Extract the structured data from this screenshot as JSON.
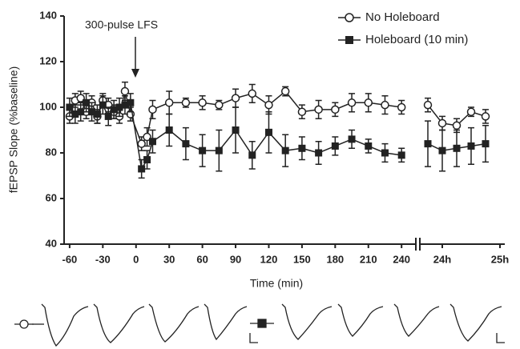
{
  "chart_data": {
    "type": "line",
    "annotation": "300-pulse LFS",
    "xlabel": "Time (min)",
    "ylabel": "fEPSP Slope (%baseline)",
    "xlim": [
      -65,
      1505
    ],
    "x_break": [
      250,
      1420
    ],
    "ylim": [
      40,
      140
    ],
    "yticks": [
      40,
      60,
      80,
      100,
      120,
      140
    ],
    "xticks": [
      -60,
      -30,
      0,
      30,
      60,
      90,
      120,
      150,
      180,
      210,
      240,
      {
        "value": 1440,
        "label": "24h"
      },
      {
        "value": 1500,
        "label": "25h"
      }
    ],
    "x": [
      -60,
      -55,
      -50,
      -45,
      -40,
      -35,
      -30,
      -25,
      -20,
      -15,
      -10,
      -5,
      5,
      10,
      15,
      30,
      45,
      60,
      75,
      90,
      105,
      120,
      135,
      150,
      165,
      180,
      195,
      210,
      225,
      240,
      1425,
      1440,
      1455,
      1470,
      1485
    ],
    "series": [
      {
        "name": "No Holeboard",
        "color": "#222222",
        "marker": "circle",
        "values": [
          96,
          103,
          104,
          98,
          102,
          96,
          103,
          101,
          98,
          96,
          107,
          97,
          84,
          87,
          99,
          102,
          102,
          102,
          101,
          104,
          106,
          101,
          107,
          98,
          99,
          99,
          102,
          102,
          101,
          100,
          101,
          93,
          92,
          98,
          96
        ],
        "errors": [
          3,
          3,
          3,
          3,
          3,
          3,
          3,
          3,
          3,
          3,
          4,
          3,
          3,
          4,
          4,
          5,
          2,
          3,
          2,
          4,
          4,
          4,
          2,
          3,
          4,
          3,
          4,
          4,
          4,
          3,
          3,
          3,
          3,
          2,
          3
        ]
      },
      {
        "name": "Holeboard (10 min)",
        "color": "#222222",
        "marker": "square",
        "values": [
          100,
          97,
          98,
          102,
          98,
          97,
          101,
          96,
          99,
          100,
          101,
          102,
          73,
          77,
          85,
          90,
          84,
          81,
          81,
          90,
          79,
          89,
          81,
          82,
          80,
          83,
          86,
          83,
          80,
          79,
          84,
          81,
          82,
          83,
          84
        ],
        "errors": [
          4,
          4,
          4,
          4,
          4,
          4,
          4,
          4,
          4,
          4,
          4,
          4,
          4,
          4,
          5,
          7,
          7,
          7,
          9,
          10,
          6,
          9,
          7,
          5,
          5,
          4,
          4,
          3,
          4,
          3,
          10,
          9,
          8,
          8,
          8
        ]
      }
    ],
    "legend": "upper right"
  }
}
